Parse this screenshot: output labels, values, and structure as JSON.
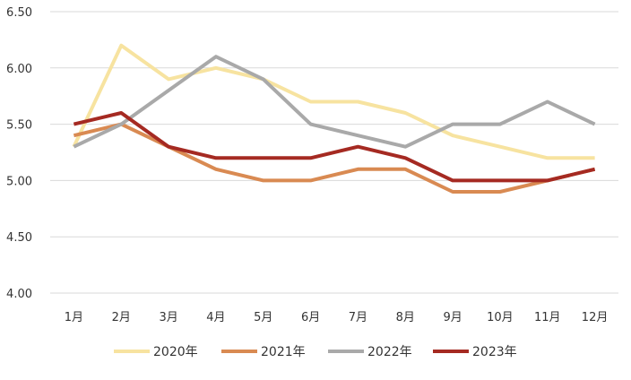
{
  "chart_data": {
    "type": "line",
    "title": "",
    "xlabel": "",
    "ylabel": "",
    "categories": [
      "1月",
      "2月",
      "3月",
      "4月",
      "5月",
      "6月",
      "7月",
      "8月",
      "9月",
      "10月",
      "11月",
      "12月"
    ],
    "ylim": [
      4.0,
      6.5
    ],
    "yticks": [
      "4.00",
      "4.50",
      "5.00",
      "5.50",
      "6.00",
      "6.50"
    ],
    "grid": true,
    "legend_position": "bottom",
    "series": [
      {
        "name": "2020年",
        "color": "#F7E3A0",
        "values": [
          5.3,
          6.2,
          5.9,
          6.0,
          5.9,
          5.7,
          5.7,
          5.6,
          5.4,
          5.3,
          5.2,
          5.2
        ]
      },
      {
        "name": "2021年",
        "color": "#D98A52",
        "values": [
          5.4,
          5.5,
          5.3,
          5.1,
          5.0,
          5.0,
          5.1,
          5.1,
          4.9,
          4.9,
          5.0,
          5.1
        ]
      },
      {
        "name": "2022年",
        "color": "#A9A9A9",
        "values": [
          5.3,
          5.5,
          5.8,
          6.1,
          5.9,
          5.5,
          5.4,
          5.3,
          5.5,
          5.5,
          5.7,
          5.5
        ]
      },
      {
        "name": "2023年",
        "color": "#A52A22",
        "values": [
          5.5,
          5.6,
          5.3,
          5.2,
          5.2,
          5.2,
          5.3,
          5.2,
          5.0,
          5.0,
          5.0,
          5.1
        ]
      }
    ]
  }
}
